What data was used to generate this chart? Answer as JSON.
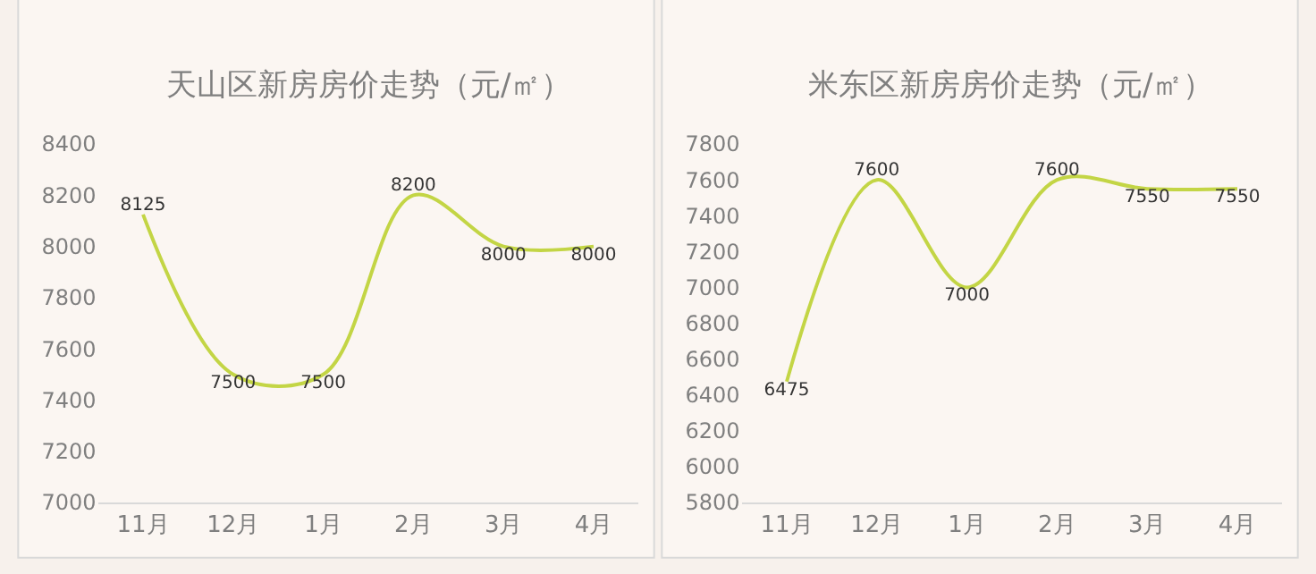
{
  "chart_data": [
    {
      "type": "line",
      "title": "天山区新房房价走势（元/㎡）",
      "categories": [
        "11月",
        "12月",
        "1月",
        "2月",
        "3月",
        "4月"
      ],
      "series": [
        {
          "color": "#c3d545",
          "values": [
            8125,
            7500,
            7500,
            8200,
            8000,
            8000
          ]
        }
      ],
      "ylim": [
        7000,
        8400
      ],
      "yticks": [
        7000,
        7200,
        7400,
        7600,
        7800,
        8000,
        8200,
        8400
      ],
      "grid": false,
      "data_labels": true,
      "marker": "none",
      "line_style": "solid"
    },
    {
      "type": "line",
      "title": "米东区新房房价走势（元/㎡）",
      "categories": [
        "11月",
        "12月",
        "1月",
        "2月",
        "3月",
        "4月"
      ],
      "series": [
        {
          "color": "#c3d545",
          "values": [
            6475,
            7600,
            7000,
            7600,
            7550,
            7550
          ]
        }
      ],
      "ylim": [
        5800,
        7800
      ],
      "yticks": [
        5800,
        6000,
        6200,
        6400,
        6600,
        6800,
        7000,
        7200,
        7400,
        7600,
        7800
      ],
      "grid": false,
      "data_labels": true,
      "marker": "none",
      "line_style": "solid"
    }
  ]
}
